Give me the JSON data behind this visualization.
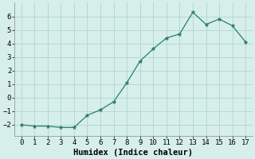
{
  "x": [
    0,
    1,
    2,
    3,
    4,
    5,
    6,
    7,
    8,
    9,
    10,
    11,
    12,
    13,
    14,
    15,
    16,
    17
  ],
  "y": [
    -2.0,
    -2.1,
    -2.1,
    -2.2,
    -2.2,
    -1.3,
    -0.9,
    -0.3,
    1.1,
    2.7,
    3.6,
    4.4,
    4.7,
    6.3,
    5.4,
    5.8,
    5.3,
    4.1
  ],
  "line_color": "#2d7d6e",
  "marker": "*",
  "marker_size": 3.5,
  "background_color": "#d6efea",
  "grid_color": "#b8d8d2",
  "xlabel": "Humidex (Indice chaleur)",
  "tick_fontsize": 6.5,
  "xlabel_fontsize": 7.5,
  "xlim": [
    -0.5,
    17.5
  ],
  "ylim": [
    -2.8,
    7.0
  ],
  "yticks": [
    -2,
    -1,
    0,
    1,
    2,
    3,
    4,
    5,
    6
  ],
  "xticks": [
    0,
    1,
    2,
    3,
    4,
    5,
    6,
    7,
    8,
    9,
    10,
    11,
    12,
    13,
    14,
    15,
    16,
    17
  ]
}
